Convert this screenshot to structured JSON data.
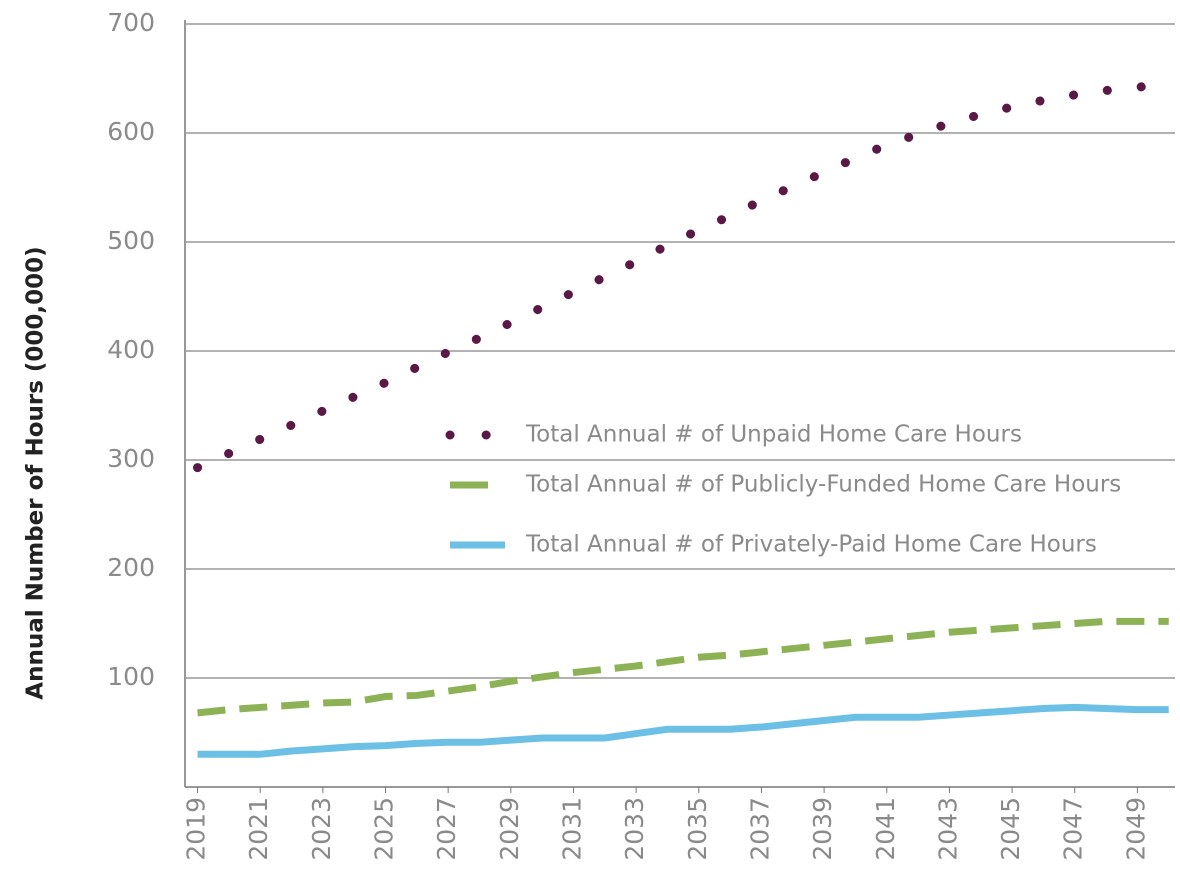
{
  "chart_data": {
    "type": "line",
    "y_label": "Annual Number of Hours (000,000)",
    "x": [
      2019,
      2020,
      2021,
      2022,
      2023,
      2024,
      2025,
      2026,
      2027,
      2028,
      2029,
      2030,
      2031,
      2032,
      2033,
      2034,
      2035,
      2036,
      2037,
      2038,
      2039,
      2040,
      2041,
      2042,
      2043,
      2044,
      2045,
      2046,
      2047,
      2048,
      2049,
      2050
    ],
    "series": [
      {
        "name": "Total Annual # of Unpaid Home Care Hours",
        "color": "#5a1846",
        "style": "dotted",
        "values": [
          293,
          306,
          319,
          332,
          345,
          358,
          371,
          385,
          399,
          412,
          426,
          440,
          454,
          468,
          482,
          497,
          511,
          524,
          538,
          551,
          564,
          577,
          589,
          599,
          609,
          617,
          624,
          630,
          635,
          639,
          642,
          645
        ]
      },
      {
        "name": "Total Annual # of Publicly-Funded Home Care Hours",
        "color": "#8db255",
        "style": "dashed",
        "values": [
          68,
          71,
          73,
          75,
          77,
          78,
          83,
          84,
          88,
          92,
          97,
          101,
          105,
          108,
          111,
          115,
          119,
          121,
          124,
          127,
          130,
          133,
          136,
          139,
          142,
          144,
          146,
          148,
          150,
          152,
          152,
          152
        ]
      },
      {
        "name": "Total Annual # of Privately-Paid Home Care Hours",
        "color": "#6cc0e5",
        "style": "solid",
        "values": [
          30,
          30,
          30,
          33,
          35,
          37,
          38,
          40,
          41,
          41,
          43,
          45,
          45,
          45,
          49,
          53,
          53,
          53,
          55,
          58,
          61,
          64,
          64,
          64,
          66,
          68,
          70,
          72,
          73,
          72,
          71,
          71
        ]
      }
    ],
    "xlim": [
      2018.6,
      2050.2
    ],
    "xticks": [
      2019,
      2021,
      2023,
      2025,
      2027,
      2029,
      2031,
      2033,
      2035,
      2037,
      2039,
      2041,
      2043,
      2045,
      2047,
      2049
    ],
    "ylim": [
      0,
      700
    ],
    "yticks": [
      100,
      200,
      300,
      400,
      500,
      600,
      700
    ],
    "grid": true
  }
}
